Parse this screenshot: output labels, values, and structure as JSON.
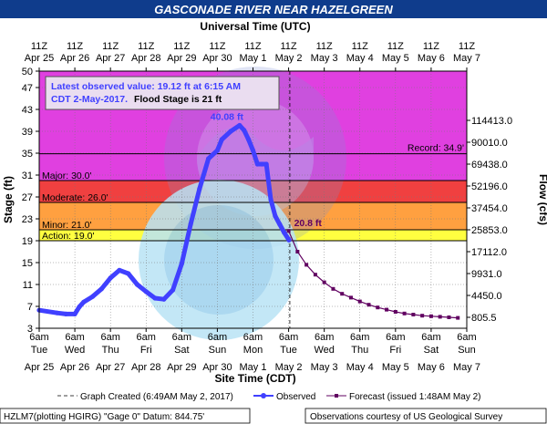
{
  "header": {
    "title": "GASCONADE RIVER NEAR HAZELGREEN",
    "top_axis_title": "Universal Time (UTC)",
    "bottom_axis_title": "Site Time (CDT)",
    "left_axis_title": "Stage (ft)",
    "right_axis_title": "Flow (cfs)"
  },
  "info_box": {
    "line1": "Latest observed value: 19.12 ft at 6:15 AM",
    "line2a": "CDT 2-May-2017.",
    "line2b": "Flood Stage is 21 ft"
  },
  "annotations": {
    "peak_label": "40.08 ft",
    "forecast_crest_label": "20.8 ft",
    "record_label": "Record: 34.9'"
  },
  "legend": {
    "graph_created": "Graph Created (6:49AM May 2, 2017)",
    "observed": "Observed",
    "forecast": "Forecast (issued 1:48AM May 2)"
  },
  "footer": {
    "left": "HZLM7(plotting HGIRG) \"Gage 0\" Datum: 844.75'",
    "right": "Observations courtesy of US Geological Survey"
  },
  "colors": {
    "major": "#e040e0",
    "moderate": "#f04040",
    "minor": "#ffa040",
    "action": "#ffff40",
    "normal": "#ffffff",
    "observed": "#4040ff",
    "forecast": "#600060",
    "title_bar": "#0f3c8c",
    "info_text": "#4040ff",
    "annotation": "#4040ff",
    "forecast_annotation": "#600060"
  },
  "chart_data": {
    "type": "line",
    "title": "GASCONADE RIVER NEAR HAZELGREEN",
    "xlabel": "Site Time (CDT)",
    "ylabel": "Stage (ft)",
    "y2label": "Flow (cfs)",
    "ylim": [
      3,
      50
    ],
    "xlim": [
      "2017-04-25 06:00",
      "2017-05-07 06:00"
    ],
    "yticks": [
      3,
      7,
      11,
      15,
      19,
      23,
      27,
      31,
      35,
      39,
      43,
      47,
      50
    ],
    "flow_ticks": [
      {
        "stage": 5,
        "flow": "805.5"
      },
      {
        "stage": 9,
        "flow": "4450.0"
      },
      {
        "stage": 13,
        "flow": "9931.0"
      },
      {
        "stage": 17,
        "flow": "17112.0"
      },
      {
        "stage": 21,
        "flow": "25853.0"
      },
      {
        "stage": 25,
        "flow": "37454.0"
      },
      {
        "stage": 29,
        "flow": "52196.0"
      },
      {
        "stage": 33,
        "flow": "69438.0"
      },
      {
        "stage": 37,
        "flow": "90010.0"
      },
      {
        "stage": 41,
        "flow": "114413.0"
      }
    ],
    "bottom_ticks": [
      {
        "time": "6am",
        "day": "Tue",
        "date": "Apr 25"
      },
      {
        "time": "6am",
        "day": "Wed",
        "date": "Apr 26"
      },
      {
        "time": "6am",
        "day": "Thu",
        "date": "Apr 27"
      },
      {
        "time": "6am",
        "day": "Fri",
        "date": "Apr 28"
      },
      {
        "time": "6am",
        "day": "Sat",
        "date": "Apr 29"
      },
      {
        "time": "6am",
        "day": "Sun",
        "date": "Apr 30"
      },
      {
        "time": "6am",
        "day": "Mon",
        "date": "May 1"
      },
      {
        "time": "6am",
        "day": "Tue",
        "date": "May 2"
      },
      {
        "time": "6am",
        "day": "Wed",
        "date": "May 3"
      },
      {
        "time": "6am",
        "day": "Thu",
        "date": "May 4"
      },
      {
        "time": "6am",
        "day": "Fri",
        "date": "May 5"
      },
      {
        "time": "6am",
        "day": "Sat",
        "date": "May 6"
      },
      {
        "time": "6am",
        "day": "Sun",
        "date": "May 7"
      }
    ],
    "top_ticks": [
      {
        "time": "11Z",
        "date": "Apr 25"
      },
      {
        "time": "11Z",
        "date": "Apr 26"
      },
      {
        "time": "11Z",
        "date": "Apr 27"
      },
      {
        "time": "11Z",
        "date": "Apr 28"
      },
      {
        "time": "11Z",
        "date": "Apr 29"
      },
      {
        "time": "11Z",
        "date": "Apr 30"
      },
      {
        "time": "11Z",
        "date": "May 1"
      },
      {
        "time": "11Z",
        "date": "May 2"
      },
      {
        "time": "11Z",
        "date": "May 3"
      },
      {
        "time": "11Z",
        "date": "May 4"
      },
      {
        "time": "11Z",
        "date": "May 5"
      },
      {
        "time": "11Z",
        "date": "May 6"
      },
      {
        "time": "11Z",
        "date": "May 7"
      }
    ],
    "flood_categories": [
      {
        "name": "Major",
        "label": "Major: 30.0'",
        "from": 30.0,
        "to": 50.0
      },
      {
        "name": "Moderate",
        "label": "Moderate: 26.0'",
        "from": 26.0,
        "to": 30.0
      },
      {
        "name": "Minor",
        "label": "Minor: 21.0'",
        "from": 21.0,
        "to": 26.0
      },
      {
        "name": "Action",
        "label": "Action: 19.0'",
        "from": 19.0,
        "to": 21.0
      }
    ],
    "record_stage": 34.9,
    "graph_created": "2017-05-02 06:49",
    "series": [
      {
        "name": "Observed",
        "x": [
          "2017-04-25 06:00",
          "2017-04-25 18:00",
          "2017-04-26 00:00",
          "2017-04-26 06:00",
          "2017-04-26 09:00",
          "2017-04-26 12:00",
          "2017-04-26 18:00",
          "2017-04-27 00:00",
          "2017-04-27 06:00",
          "2017-04-27 12:00",
          "2017-04-27 18:00",
          "2017-04-28 00:00",
          "2017-04-28 06:00",
          "2017-04-28 12:00",
          "2017-04-28 18:00",
          "2017-04-29 00:00",
          "2017-04-29 06:00",
          "2017-04-29 12:00",
          "2017-04-29 18:00",
          "2017-04-30 00:00",
          "2017-04-30 06:00",
          "2017-04-30 09:00",
          "2017-04-30 15:00",
          "2017-04-30 21:00",
          "2017-05-01 00:00",
          "2017-05-01 03:00",
          "2017-05-01 06:00",
          "2017-05-01 09:00",
          "2017-05-01 12:00",
          "2017-05-01 15:00",
          "2017-05-01 18:00",
          "2017-05-01 21:00",
          "2017-05-02 00:00",
          "2017-05-02 03:00",
          "2017-05-02 06:15"
        ],
        "y": [
          6.3,
          5.8,
          5.6,
          5.6,
          6.9,
          7.8,
          8.8,
          10.2,
          12.2,
          13.6,
          13.0,
          11.0,
          9.7,
          8.5,
          8.3,
          10.0,
          14.8,
          22.0,
          28.5,
          34.0,
          35.5,
          37.5,
          39.0,
          40.08,
          39.2,
          37.5,
          35.5,
          33.0,
          33.0,
          33.0,
          26.5,
          23.5,
          22.0,
          20.5,
          19.12
        ]
      },
      {
        "name": "Forecast (issued 1:48AM May 2)",
        "x": [
          "2017-05-02 06:00",
          "2017-05-02 12:00",
          "2017-05-02 18:00",
          "2017-05-03 00:00",
          "2017-05-03 06:00",
          "2017-05-03 12:00",
          "2017-05-03 18:00",
          "2017-05-04 00:00",
          "2017-05-04 06:00",
          "2017-05-04 12:00",
          "2017-05-04 18:00",
          "2017-05-05 00:00",
          "2017-05-05 06:00",
          "2017-05-05 12:00",
          "2017-05-05 18:00",
          "2017-05-06 00:00",
          "2017-05-06 06:00",
          "2017-05-06 12:00",
          "2017-05-06 18:00",
          "2017-05-07 00:00"
        ],
        "y": [
          20.8,
          17.0,
          14.6,
          12.8,
          11.4,
          10.2,
          9.3,
          8.6,
          7.9,
          7.3,
          6.8,
          6.4,
          6.0,
          5.7,
          5.5,
          5.3,
          5.2,
          5.1,
          5.0,
          4.9
        ]
      }
    ]
  }
}
